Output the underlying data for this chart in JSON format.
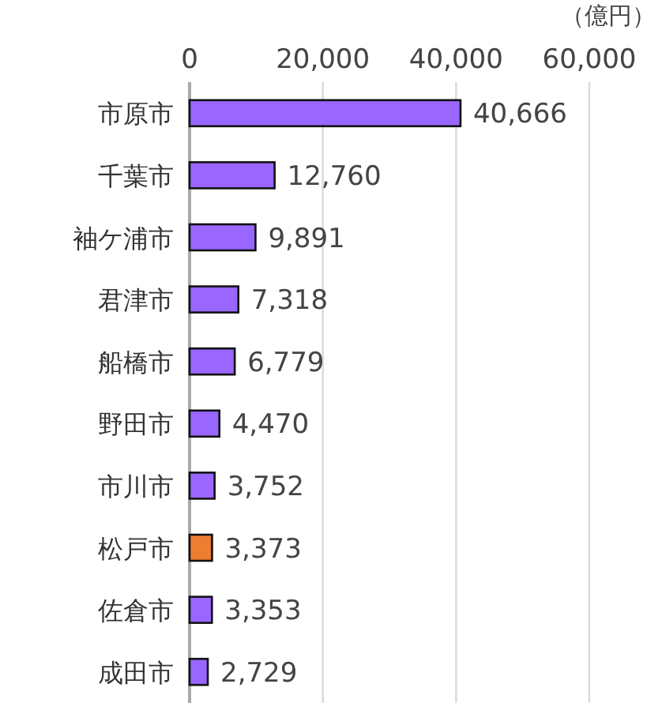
{
  "chart_data": {
    "type": "bar",
    "orientation": "horizontal",
    "xlabel": "（億円）",
    "categories": [
      "市原市",
      "千葉市",
      "袖ケ浦市",
      "君津市",
      "船橋市",
      "野田市",
      "市川市",
      "松戸市",
      "佐倉市",
      "成田市"
    ],
    "values": [
      40666,
      12760,
      9891,
      7318,
      6779,
      4470,
      3752,
      3373,
      3353,
      2729
    ],
    "value_labels": [
      "40,666",
      "12,760",
      "9,891",
      "7,318",
      "6,779",
      "4,470",
      "3,752",
      "3,373",
      "3,353",
      "2,729"
    ],
    "colors": [
      "#9966ff",
      "#9966ff",
      "#9966ff",
      "#9966ff",
      "#9966ff",
      "#9966ff",
      "#9966ff",
      "#ed7d31",
      "#9966ff",
      "#9966ff"
    ],
    "xlim": [
      0,
      60000
    ],
    "xticks": [
      0,
      {
        "value": 20000,
        "label": "20,000"
      },
      {
        "value": 40000,
        "label": "40,000"
      },
      {
        "value": 60000,
        "label": "60,000"
      }
    ],
    "grid": "x"
  }
}
